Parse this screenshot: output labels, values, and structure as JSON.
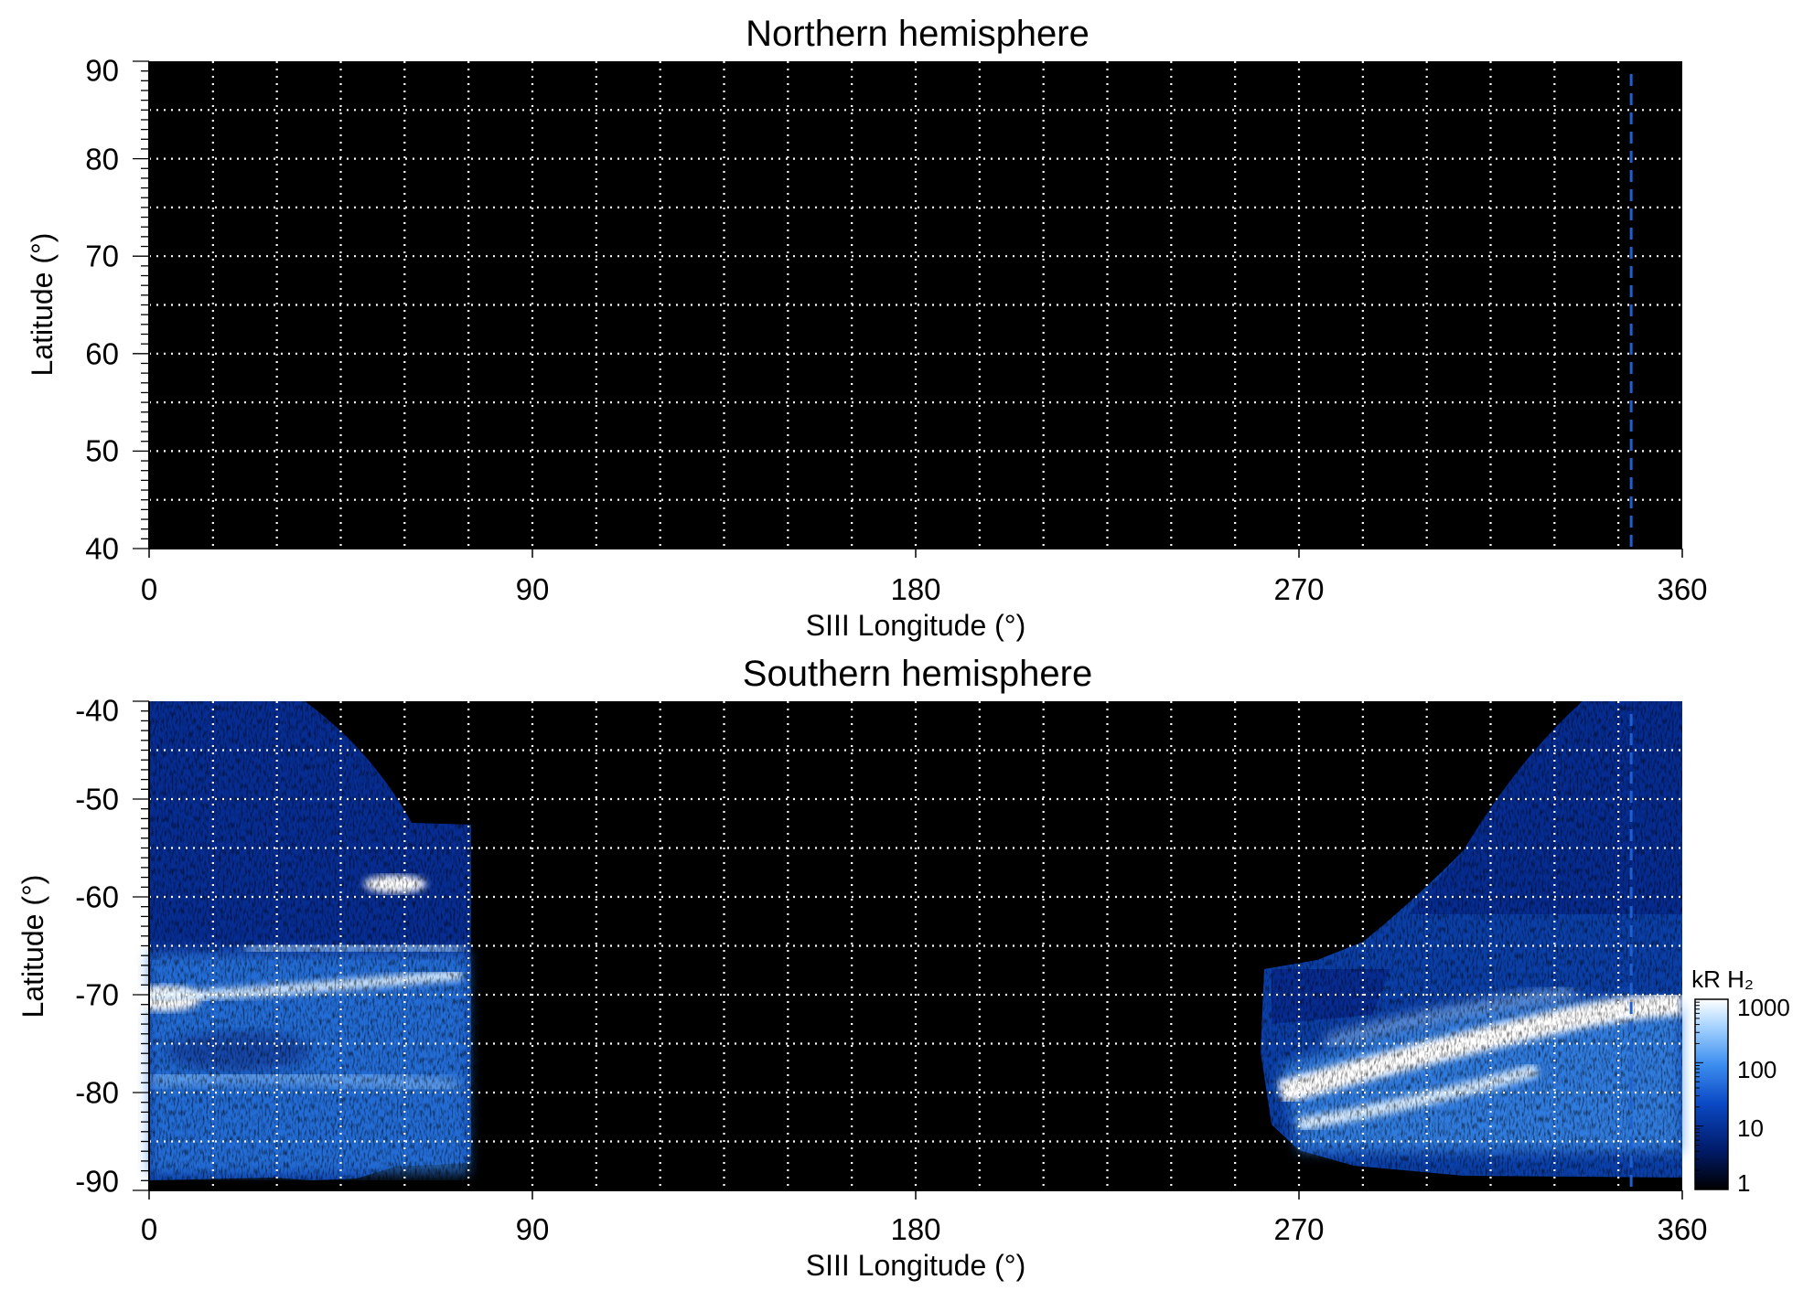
{
  "chart_data": [
    {
      "type": "heatmap",
      "title": "Northern hemisphere",
      "xlabel": "SIII Longitude (°)",
      "ylabel": "Latitude (°)",
      "xlim": [
        0,
        360
      ],
      "ylim": [
        40,
        90
      ],
      "x_ticks": [
        "0",
        "90",
        "180",
        "270",
        "360"
      ],
      "y_ticks": [
        "40",
        "50",
        "60",
        "70",
        "80",
        "90"
      ],
      "x_tick_values": [
        0,
        90,
        180,
        270,
        360
      ],
      "y_tick_values": [
        40,
        50,
        60,
        70,
        80,
        90
      ],
      "grid": true,
      "grid_x_step": 15,
      "grid_y_step": 5,
      "marker_line_longitude": 348,
      "marker_line_color": "#1f5fd0",
      "emission": "none"
    },
    {
      "type": "heatmap",
      "title": "Southern hemisphere",
      "xlabel": "SIII Longitude (°)",
      "ylabel": "Latitude (°)",
      "xlim": [
        0,
        360
      ],
      "ylim": [
        -90,
        -40
      ],
      "x_ticks": [
        "0",
        "90",
        "180",
        "270",
        "360"
      ],
      "y_ticks": [
        "-90",
        "-80",
        "-70",
        "-60",
        "-50",
        "-40"
      ],
      "x_tick_values": [
        0,
        90,
        180,
        270,
        360
      ],
      "y_tick_values": [
        -90,
        -80,
        -70,
        -60,
        -50,
        -40
      ],
      "grid": true,
      "grid_x_step": 15,
      "grid_y_step": 5,
      "marker_line_longitude": 348,
      "marker_line_color": "#1f5fd0",
      "coverage_regions_longitude": [
        [
          0,
          76
        ],
        [
          263,
          360
        ]
      ],
      "main_oval_latitude": [
        [
          0,
          -70
        ],
        [
          20,
          -72
        ],
        [
          45,
          -71
        ],
        [
          76,
          -70
        ],
        [
          270,
          -82
        ],
        [
          300,
          -80
        ],
        [
          330,
          -75
        ],
        [
          360,
          -71
        ]
      ],
      "bright_spot": {
        "longitude": 52,
        "latitude": -58
      },
      "colorbar": {
        "label": "kR H₂",
        "scale": "log",
        "range": [
          1,
          1000
        ],
        "ticks": [
          "1",
          "10",
          "100",
          "1000"
        ],
        "tick_values": [
          1,
          10,
          100,
          1000
        ],
        "colors": [
          "#000000",
          "#001a66",
          "#0a48c4",
          "#3d8ff0",
          "#a8d4ff",
          "#ffffff"
        ]
      }
    }
  ]
}
